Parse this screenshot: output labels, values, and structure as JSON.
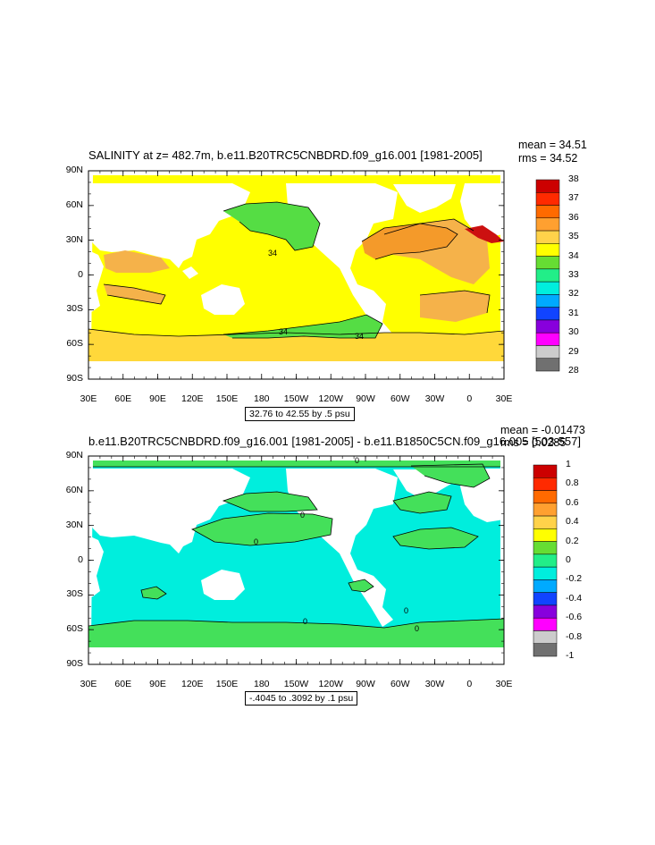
{
  "panel1": {
    "title": "SALINITY at z= 482.7m, b.e11.B20TRC5CNBDRD.f09_g16.001 [1981-2005]",
    "mean": "mean = 34.51",
    "rms": "rms = 34.52",
    "contour_note": "32.76 to 42.55 by .5 psu",
    "contour_labels": [
      "34",
      "34",
      "34"
    ],
    "colorbar": {
      "labels": [
        "38",
        "37",
        "36",
        "35",
        "34",
        "33",
        "32",
        "31",
        "30",
        "29",
        "28"
      ],
      "colors": [
        "#cc0000",
        "#ff2a00",
        "#ff6a00",
        "#ffa030",
        "#ffd24a",
        "#ffff00",
        "#66dd33",
        "#22ee88",
        "#00eedd",
        "#00aaff",
        "#1144ff",
        "#8800dd",
        "#ff00ff",
        "#cccccc",
        "#707070"
      ]
    },
    "field_colors": {
      "base": "#ffff00",
      "warm": "#ffd83a",
      "warmer": "#f5b24a",
      "hot": "#f49a2a",
      "max": "#cc1010",
      "fresh": "#55dd44",
      "fresher": "#44e05a"
    }
  },
  "panel2": {
    "title": "b.e11.B20TRC5CNBDRD.f09_g16.001 [1981-2005] - b.e11.B1850C5CN.f09_g16.005 [503-557]",
    "mean": "mean = -0.01473",
    "rms": "rms = 0.0285",
    "contour_note": "-.4045 to .3092 by .1 psu",
    "contour_labels": [
      "0",
      "0",
      "0",
      "0",
      "0",
      "0"
    ],
    "colorbar": {
      "labels": [
        "1",
        "0.8",
        "0.6",
        "0.4",
        "0.2",
        "0",
        "-0.2",
        "-0.4",
        "-0.6",
        "-0.8",
        "-1"
      ],
      "colors": [
        "#cc0000",
        "#ff2a00",
        "#ff6a00",
        "#ffa030",
        "#ffd24a",
        "#ffff00",
        "#66dd33",
        "#22ee88",
        "#00eedd",
        "#00aaff",
        "#1144ff",
        "#8800dd",
        "#ff00ff",
        "#cccccc",
        "#707070"
      ]
    },
    "field_colors": {
      "base": "#00eedd",
      "positive": "#44e05a"
    }
  },
  "axes": {
    "lat_labels": [
      "90N",
      "60N",
      "30N",
      "0",
      "30S",
      "60S",
      "90S"
    ],
    "lon_labels": [
      "30E",
      "60E",
      "90E",
      "120E",
      "150E",
      "180",
      "150W",
      "120W",
      "90W",
      "60W",
      "30W",
      "0",
      "30E"
    ]
  }
}
